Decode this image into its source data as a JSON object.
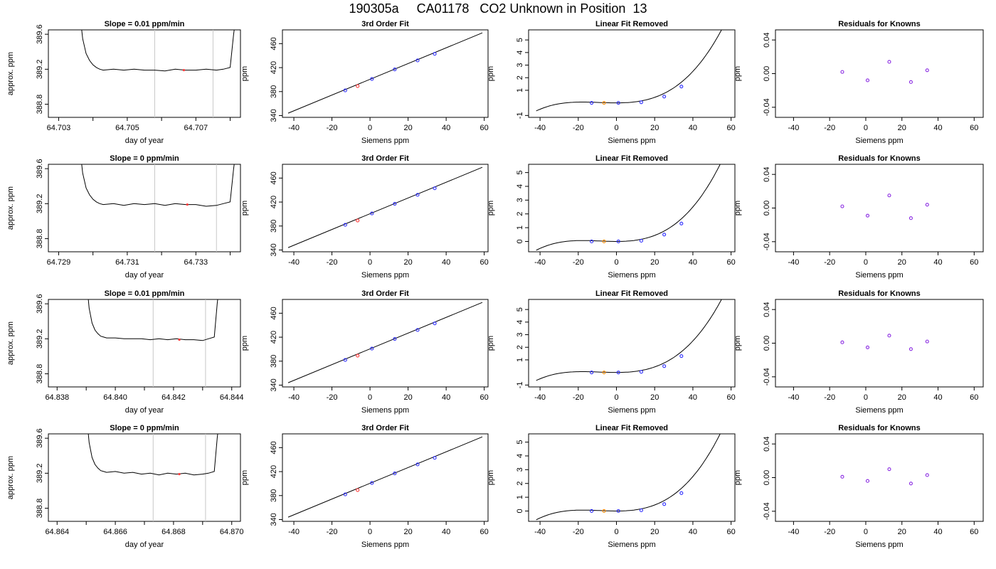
{
  "page": {
    "title": "190305a     CA01178   CO2 Unknown in Position  13"
  },
  "colors": {
    "axis": "#000000",
    "line": "#000000",
    "vline": "#c8c8c8",
    "known_point": "#2d2dff",
    "unknown_point": "#ff3c3c",
    "unknown_point_lfr": "#ff8c00",
    "residual_point": "#8a2be2"
  },
  "chart_data": [
    {
      "type": "line",
      "title": "Slope =  0.01  ppm/min",
      "xlabel": "day of year",
      "ylabel": "approx. ppm",
      "xlim": [
        64.7027,
        64.7083
      ],
      "ylim": [
        388.65,
        389.65
      ],
      "xticks": [
        64.703,
        64.704,
        64.705,
        64.706,
        64.707,
        64.708
      ],
      "xtick_labels": [
        "64.703",
        "",
        "64.705",
        "",
        "64.707",
        ""
      ],
      "yticks": [
        388.8,
        389.2,
        389.6
      ],
      "ytick_labels": [
        "388.8",
        "389.2",
        "389.6"
      ],
      "vlines": [
        64.7058,
        64.7075
      ],
      "trace": {
        "x": [
          64.7036,
          64.7037,
          64.7038,
          64.7039,
          64.704,
          64.7041,
          64.7042,
          64.7043,
          64.7046,
          64.7049,
          64.7052,
          64.7055,
          64.7058,
          64.7061,
          64.7064,
          64.7067,
          64.707,
          64.7073,
          64.7076,
          64.7078,
          64.708,
          64.7081,
          64.7082
        ],
        "y": [
          389.9,
          389.55,
          389.38,
          389.3,
          389.25,
          389.22,
          389.2,
          389.19,
          389.2,
          389.19,
          389.2,
          389.19,
          389.19,
          389.18,
          389.2,
          389.19,
          389.19,
          389.2,
          389.19,
          389.2,
          389.22,
          389.6,
          389.9
        ]
      },
      "marker": {
        "x": 64.70665,
        "y": 389.19
      }
    },
    {
      "type": "scatter",
      "title": "3rd Order Fit",
      "xlabel": "Siemens ppm",
      "ylabel": "ppm",
      "xlim": [
        -46,
        62
      ],
      "ylim": [
        337,
        483
      ],
      "xticks": [
        -40,
        -20,
        0,
        20,
        40,
        60
      ],
      "xtick_labels": [
        "-40",
        "-20",
        "0",
        "20",
        "40",
        "60"
      ],
      "yticks": [
        340,
        380,
        420,
        460
      ],
      "ytick_labels": [
        "340",
        "380",
        "420",
        "460"
      ],
      "line": {
        "x": [
          -43,
          59
        ],
        "y": [
          344,
          478
        ]
      },
      "known_points": {
        "x": [
          -13,
          1,
          13,
          25,
          34
        ],
        "y": [
          382,
          401,
          417,
          432,
          443
        ]
      },
      "unknown_points": {
        "x": [
          -6.5
        ],
        "y": [
          389.2
        ]
      }
    },
    {
      "type": "line",
      "title": "Linear Fit Removed",
      "xlabel": "Siemens ppm",
      "ylabel": "ppm",
      "xlim": [
        -46,
        62
      ],
      "ylim": [
        -1.15,
        5.8
      ],
      "xticks": [
        -40,
        -20,
        0,
        20,
        40,
        60
      ],
      "xtick_labels": [
        "-40",
        "-20",
        "0",
        "20",
        "40",
        "60"
      ],
      "yticks": [
        -1,
        1,
        2,
        3,
        4,
        5
      ],
      "ytick_labels": [
        "-1",
        "1",
        "2",
        "3",
        "4",
        "5"
      ],
      "curve": {
        "a": 2.35e-05,
        "b": 0.000625,
        "xmin": -42,
        "xmax": 59
      },
      "known_points": {
        "x": [
          -13,
          1,
          13,
          25,
          34
        ],
        "y": [
          0,
          0,
          0.05,
          0.5,
          1.3
        ]
      },
      "unknown_points": {
        "x": [
          -6.5
        ],
        "y": [
          0
        ]
      }
    },
    {
      "type": "scatter",
      "title": "Residuals for Knowns",
      "xlabel": "Siemens ppm",
      "ylabel": "ppm",
      "xlim": [
        -50,
        65
      ],
      "ylim": [
        -0.052,
        0.052
      ],
      "xticks": [
        -40,
        -20,
        0,
        20,
        40,
        60
      ],
      "xtick_labels": [
        "-40",
        "-20",
        "0",
        "20",
        "40",
        "60"
      ],
      "yticks": [
        -0.04,
        0,
        0.04
      ],
      "ytick_labels": [
        "-0.04",
        "0.00",
        "0.04"
      ],
      "points": {
        "x": [
          -13,
          1,
          13,
          25,
          34
        ],
        "y": [
          0.002,
          -0.008,
          0.014,
          -0.01,
          0.004
        ]
      }
    },
    {
      "type": "line",
      "title": "Slope =  0  ppm/min",
      "xlabel": "day of year",
      "ylabel": "approx. ppm",
      "xlim": [
        64.7287,
        64.7343
      ],
      "ylim": [
        388.65,
        389.65
      ],
      "xticks": [
        64.729,
        64.73,
        64.731,
        64.732,
        64.733,
        64.734
      ],
      "xtick_labels": [
        "64.729",
        "",
        "64.731",
        "",
        "64.733",
        ""
      ],
      "yticks": [
        388.8,
        389.2,
        389.6
      ],
      "ytick_labels": [
        "388.8",
        "389.2",
        "389.6"
      ],
      "vlines": [
        64.7318,
        64.7336
      ],
      "trace": {
        "x": [
          64.7296,
          64.7297,
          64.7298,
          64.7299,
          64.73,
          64.7301,
          64.7302,
          64.7303,
          64.7306,
          64.7309,
          64.7312,
          64.7315,
          64.7318,
          64.7321,
          64.7324,
          64.7327,
          64.733,
          64.7333,
          64.7336,
          64.7338,
          64.734,
          64.7341,
          64.7342
        ],
        "y": [
          389.9,
          389.55,
          389.38,
          389.3,
          389.25,
          389.22,
          389.2,
          389.19,
          389.2,
          389.18,
          389.2,
          389.19,
          389.2,
          389.18,
          389.2,
          389.19,
          389.19,
          389.17,
          389.18,
          389.2,
          389.22,
          389.6,
          389.9
        ]
      },
      "marker": {
        "x": 64.73275,
        "y": 389.19
      }
    },
    {
      "type": "scatter",
      "title": "3rd Order Fit",
      "xlabel": "Siemens ppm",
      "ylabel": "ppm",
      "xlim": [
        -46,
        62
      ],
      "ylim": [
        337,
        483
      ],
      "xticks": [
        -40,
        -20,
        0,
        20,
        40,
        60
      ],
      "xtick_labels": [
        "-40",
        "-20",
        "0",
        "20",
        "40",
        "60"
      ],
      "yticks": [
        340,
        380,
        420,
        460
      ],
      "ytick_labels": [
        "340",
        "380",
        "420",
        "460"
      ],
      "line": {
        "x": [
          -43,
          59
        ],
        "y": [
          344,
          478
        ]
      },
      "known_points": {
        "x": [
          -13,
          1,
          13,
          25,
          34
        ],
        "y": [
          382,
          401,
          417,
          432,
          443
        ]
      },
      "unknown_points": {
        "x": [
          -6.5
        ],
        "y": [
          389.2
        ]
      }
    },
    {
      "type": "line",
      "title": "Linear Fit Removed",
      "xlabel": "Siemens ppm",
      "ylabel": "ppm",
      "xlim": [
        -46,
        62
      ],
      "ylim": [
        -0.75,
        5.6
      ],
      "xticks": [
        -40,
        -20,
        0,
        20,
        40,
        60
      ],
      "xtick_labels": [
        "-40",
        "-20",
        "0",
        "20",
        "40",
        "60"
      ],
      "yticks": [
        0,
        1,
        2,
        3,
        4,
        5
      ],
      "ytick_labels": [
        "0",
        "1",
        "2",
        "3",
        "4",
        "5"
      ],
      "curve": {
        "a": 2.35e-05,
        "b": 0.000625,
        "xmin": -42,
        "xmax": 59
      },
      "known_points": {
        "x": [
          -13,
          1,
          13,
          25,
          34
        ],
        "y": [
          0,
          0,
          0.05,
          0.5,
          1.3
        ]
      },
      "unknown_points": {
        "x": [
          -6.5
        ],
        "y": [
          0
        ]
      }
    },
    {
      "type": "scatter",
      "title": "Residuals for Knowns",
      "xlabel": "Siemens ppm",
      "ylabel": "ppm",
      "xlim": [
        -50,
        65
      ],
      "ylim": [
        -0.052,
        0.052
      ],
      "xticks": [
        -40,
        -20,
        0,
        20,
        40,
        60
      ],
      "xtick_labels": [
        "-40",
        "-20",
        "0",
        "20",
        "40",
        "60"
      ],
      "yticks": [
        -0.04,
        0,
        0.04
      ],
      "ytick_labels": [
        "-0.04",
        "0.00",
        "0.04"
      ],
      "points": {
        "x": [
          -13,
          1,
          13,
          25,
          34
        ],
        "y": [
          0.002,
          -0.009,
          0.015,
          -0.012,
          0.004
        ]
      }
    },
    {
      "type": "line",
      "title": "Slope =  0.01  ppm/min",
      "xlabel": "day of year",
      "ylabel": "approx. ppm",
      "xlim": [
        64.8377,
        64.8443
      ],
      "ylim": [
        388.65,
        389.65
      ],
      "xticks": [
        64.838,
        64.839,
        64.84,
        64.841,
        64.842,
        64.843,
        64.844
      ],
      "xtick_labels": [
        "64.838",
        "",
        "64.840",
        "",
        "64.842",
        "",
        "64.844"
      ],
      "yticks": [
        388.8,
        389.2,
        389.6
      ],
      "ytick_labels": [
        "388.8",
        "389.2",
        "389.6"
      ],
      "vlines": [
        64.8413,
        64.8431
      ],
      "trace": {
        "x": [
          64.839,
          64.8391,
          64.8392,
          64.8393,
          64.8394,
          64.8395,
          64.8396,
          64.8397,
          64.84,
          64.8403,
          64.8406,
          64.8409,
          64.8412,
          64.8415,
          64.8418,
          64.8421,
          64.8424,
          64.8427,
          64.843,
          64.8432,
          64.8434,
          64.8435,
          64.8436
        ],
        "y": [
          389.9,
          389.55,
          389.38,
          389.3,
          389.26,
          389.23,
          389.22,
          389.21,
          389.21,
          389.2,
          389.2,
          389.2,
          389.19,
          389.2,
          389.19,
          389.2,
          389.19,
          389.19,
          389.18,
          389.2,
          389.22,
          389.6,
          389.9
        ]
      },
      "marker": {
        "x": 64.8422,
        "y": 389.19
      }
    },
    {
      "type": "scatter",
      "title": "3rd Order Fit",
      "xlabel": "Siemens ppm",
      "ylabel": "ppm",
      "xlim": [
        -46,
        62
      ],
      "ylim": [
        337,
        483
      ],
      "xticks": [
        -40,
        -20,
        0,
        20,
        40,
        60
      ],
      "xtick_labels": [
        "-40",
        "-20",
        "0",
        "20",
        "40",
        "60"
      ],
      "yticks": [
        340,
        380,
        420,
        460
      ],
      "ytick_labels": [
        "340",
        "380",
        "420",
        "460"
      ],
      "line": {
        "x": [
          -43,
          59
        ],
        "y": [
          344,
          478
        ]
      },
      "known_points": {
        "x": [
          -13,
          1,
          13,
          25,
          34
        ],
        "y": [
          382,
          401,
          417,
          432,
          443
        ]
      },
      "unknown_points": {
        "x": [
          -6.5
        ],
        "y": [
          389.2
        ]
      }
    },
    {
      "type": "line",
      "title": "Linear Fit Removed",
      "xlabel": "Siemens ppm",
      "ylabel": "ppm",
      "xlim": [
        -46,
        62
      ],
      "ylim": [
        -1.15,
        5.8
      ],
      "xticks": [
        -40,
        -20,
        0,
        20,
        40,
        60
      ],
      "xtick_labels": [
        "-40",
        "-20",
        "0",
        "20",
        "40",
        "60"
      ],
      "yticks": [
        -1,
        1,
        2,
        3,
        4,
        5
      ],
      "ytick_labels": [
        "-1",
        "1",
        "2",
        "3",
        "4",
        "5"
      ],
      "curve": {
        "a": 2.35e-05,
        "b": 0.000625,
        "xmin": -42,
        "xmax": 59
      },
      "known_points": {
        "x": [
          -13,
          1,
          13,
          25,
          34
        ],
        "y": [
          0,
          0,
          0.05,
          0.5,
          1.3
        ]
      },
      "unknown_points": {
        "x": [
          -6.5
        ],
        "y": [
          0
        ]
      }
    },
    {
      "type": "scatter",
      "title": "Residuals for Knowns",
      "xlabel": "Siemens ppm",
      "ylabel": "ppm",
      "xlim": [
        -50,
        65
      ],
      "ylim": [
        -0.052,
        0.052
      ],
      "xticks": [
        -40,
        -20,
        0,
        20,
        40,
        60
      ],
      "xtick_labels": [
        "-40",
        "-20",
        "0",
        "20",
        "40",
        "60"
      ],
      "yticks": [
        -0.04,
        0,
        0.04
      ],
      "ytick_labels": [
        "-0.04",
        "0.00",
        "0.04"
      ],
      "points": {
        "x": [
          -13,
          1,
          13,
          25,
          34
        ],
        "y": [
          0.001,
          -0.005,
          0.009,
          -0.007,
          0.002
        ]
      }
    },
    {
      "type": "line",
      "title": "Slope =  0  ppm/min",
      "xlabel": "day of year",
      "ylabel": "approx. ppm",
      "xlim": [
        64.8637,
        64.8703
      ],
      "ylim": [
        388.65,
        389.65
      ],
      "xticks": [
        64.864,
        64.865,
        64.866,
        64.867,
        64.868,
        64.869,
        64.87
      ],
      "xtick_labels": [
        "64.864",
        "",
        "64.866",
        "",
        "64.868",
        "",
        "64.870"
      ],
      "yticks": [
        388.8,
        389.2,
        389.6
      ],
      "ytick_labels": [
        "388.8",
        "389.2",
        "389.6"
      ],
      "vlines": [
        64.8673,
        64.8691
      ],
      "trace": {
        "x": [
          64.865,
          64.8651,
          64.8652,
          64.8653,
          64.8654,
          64.8655,
          64.8656,
          64.8657,
          64.866,
          64.8663,
          64.8666,
          64.8669,
          64.8672,
          64.8675,
          64.8678,
          64.8681,
          64.8684,
          64.8687,
          64.869,
          64.8692,
          64.8694,
          64.8695,
          64.8696
        ],
        "y": [
          389.9,
          389.55,
          389.38,
          389.3,
          389.26,
          389.23,
          389.22,
          389.21,
          389.22,
          389.2,
          389.21,
          389.19,
          389.2,
          389.18,
          389.2,
          389.19,
          389.2,
          389.18,
          389.19,
          389.2,
          389.22,
          389.6,
          389.9
        ]
      },
      "marker": {
        "x": 64.8682,
        "y": 389.19
      }
    },
    {
      "type": "scatter",
      "title": "3rd Order Fit",
      "xlabel": "Siemens ppm",
      "ylabel": "ppm",
      "xlim": [
        -46,
        62
      ],
      "ylim": [
        337,
        483
      ],
      "xticks": [
        -40,
        -20,
        0,
        20,
        40,
        60
      ],
      "xtick_labels": [
        "-40",
        "-20",
        "0",
        "20",
        "40",
        "60"
      ],
      "yticks": [
        340,
        380,
        420,
        460
      ],
      "ytick_labels": [
        "340",
        "380",
        "420",
        "460"
      ],
      "line": {
        "x": [
          -43,
          59
        ],
        "y": [
          344,
          478
        ]
      },
      "known_points": {
        "x": [
          -13,
          1,
          13,
          25,
          34
        ],
        "y": [
          382,
          401,
          417,
          432,
          443
        ]
      },
      "unknown_points": {
        "x": [
          -6.5
        ],
        "y": [
          389.2
        ]
      }
    },
    {
      "type": "line",
      "title": "Linear Fit Removed",
      "xlabel": "Siemens ppm",
      "ylabel": "ppm",
      "xlim": [
        -46,
        62
      ],
      "ylim": [
        -0.75,
        5.6
      ],
      "xticks": [
        -40,
        -20,
        0,
        20,
        40,
        60
      ],
      "xtick_labels": [
        "-40",
        "-20",
        "0",
        "20",
        "40",
        "60"
      ],
      "yticks": [
        0,
        1,
        2,
        3,
        4,
        5
      ],
      "ytick_labels": [
        "0",
        "1",
        "2",
        "3",
        "4",
        "5"
      ],
      "curve": {
        "a": 2.35e-05,
        "b": 0.000625,
        "xmin": -42,
        "xmax": 59
      },
      "known_points": {
        "x": [
          -13,
          1,
          13,
          25,
          34
        ],
        "y": [
          0,
          0,
          0.05,
          0.5,
          1.3
        ]
      },
      "unknown_points": {
        "x": [
          -6.5
        ],
        "y": [
          0
        ]
      }
    },
    {
      "type": "scatter",
      "title": "Residuals for Knowns",
      "xlabel": "Siemens ppm",
      "ylabel": "ppm",
      "xlim": [
        -50,
        65
      ],
      "ylim": [
        -0.052,
        0.052
      ],
      "xticks": [
        -40,
        -20,
        0,
        20,
        40,
        60
      ],
      "xtick_labels": [
        "-40",
        "-20",
        "0",
        "20",
        "40",
        "60"
      ],
      "points": {
        "x": [
          -13,
          1,
          13,
          25,
          34
        ],
        "y": [
          0.001,
          -0.004,
          0.01,
          -0.007,
          0.003
        ]
      },
      "yticks": [
        -0.04,
        0,
        0.04
      ],
      "ytick_labels": [
        "-0.04",
        "0.00",
        "0.04"
      ]
    }
  ]
}
